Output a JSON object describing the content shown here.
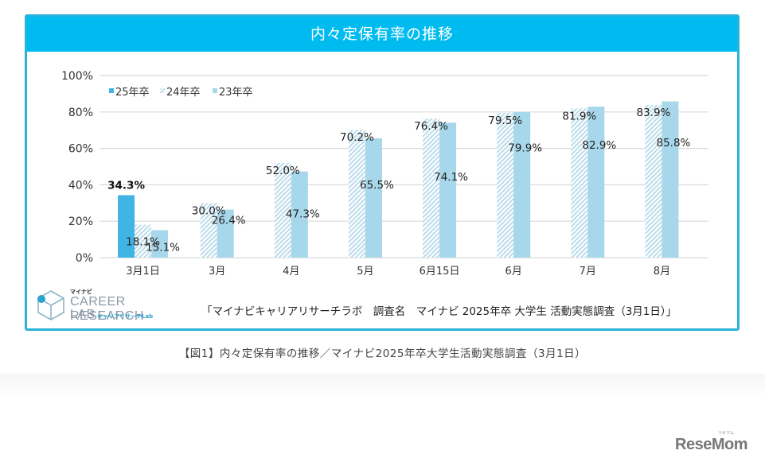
{
  "chart_data": {
    "type": "bar",
    "title": "内々定保有率の推移",
    "xlabel": "",
    "ylabel": "",
    "ylim": [
      0,
      100
    ],
    "yticks": [
      "0%",
      "20%",
      "40%",
      "60%",
      "80%",
      "100%"
    ],
    "ytick_values": [
      0,
      20,
      40,
      60,
      80,
      100
    ],
    "grid": true,
    "legend_position": "top-left",
    "categories": [
      "3月1日",
      "3月",
      "4月",
      "5月",
      "6月15日",
      "6月",
      "7月",
      "8月"
    ],
    "series": [
      {
        "name": "25年卒",
        "color": "#41b4e6",
        "pattern": "solid",
        "values": [
          34.3,
          null,
          null,
          null,
          null,
          null,
          null,
          null
        ],
        "labels": [
          "34.3%",
          null,
          null,
          null,
          null,
          null,
          null,
          null
        ]
      },
      {
        "name": "24年卒",
        "color": "#c9e4f0",
        "pattern": "hatched",
        "values": [
          18.1,
          30.0,
          52.0,
          70.2,
          76.4,
          79.5,
          81.9,
          83.9
        ],
        "labels": [
          "18.1%",
          "30.0%",
          "52.0%",
          "70.2%",
          "76.4%",
          "79.5%",
          "81.9%",
          "83.9%"
        ]
      },
      {
        "name": "23年卒",
        "color": "#a7d7ea",
        "pattern": "solid",
        "values": [
          15.1,
          26.4,
          47.3,
          65.5,
          74.1,
          79.9,
          82.9,
          85.8
        ],
        "labels": [
          "15.1%",
          "26.4%",
          "47.3%",
          "65.5%",
          "74.1%",
          "79.9%",
          "82.9%",
          "85.8%"
        ]
      }
    ]
  },
  "header": {
    "title": "内々定保有率の推移"
  },
  "logo": {
    "top": "マイナビ",
    "line1": "CAREER RESEARCH",
    "line2": "LAB",
    "kana": "キャリアリサーチLab"
  },
  "source_text": "「マイナビキャリアリサーチラボ　調査名　マイナビ 2025年卒 大学生 活動実態調査（3月1日）」",
  "caption": "【図1】内々定保有率の推移／マイナビ2025年卒大学生活動実態調査（3月1日）",
  "watermark": {
    "brand": "ReseMom",
    "kana": "リセマム"
  },
  "colors": {
    "frame": "#2bb3d9",
    "title_bar": "#00bbf0",
    "series_25": "#41b4e6",
    "series_24": "#c9e4f0",
    "series_23": "#a7d7ea"
  }
}
